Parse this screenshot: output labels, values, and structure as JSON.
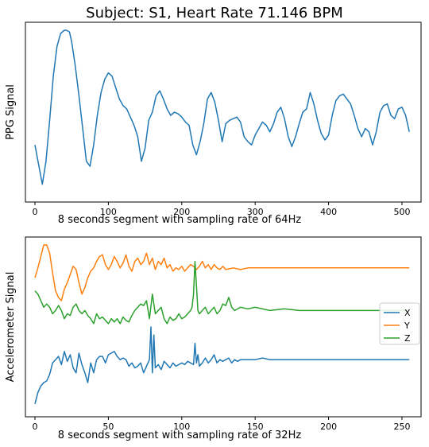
{
  "chart_data": [
    {
      "type": "line",
      "title": "Subject: S1, Heart Rate 71.146 BPM",
      "xlabel": "8 seconds segment with sampling rate of 64Hz",
      "ylabel": "PPG Signal",
      "xlim": [
        -13,
        526
      ],
      "ylim": [
        0.0,
        1.0
      ],
      "yticks_visible": false,
      "xticks": [
        "0",
        "100",
        "200",
        "300",
        "400",
        "500"
      ],
      "xtick_values": [
        0,
        100,
        200,
        300,
        400,
        500
      ],
      "grid": false,
      "series": [
        {
          "color": "#1f77b4",
          "x": [
            0,
            5,
            10,
            15,
            20,
            25,
            30,
            35,
            40,
            43,
            47,
            50,
            55,
            60,
            65,
            70,
            75,
            80,
            85,
            90,
            95,
            100,
            105,
            110,
            115,
            120,
            125,
            130,
            135,
            140,
            145,
            150,
            155,
            160,
            165,
            170,
            175,
            180,
            185,
            190,
            195,
            200,
            205,
            210,
            215,
            220,
            225,
            230,
            235,
            240,
            245,
            250,
            255,
            260,
            265,
            270,
            275,
            280,
            285,
            290,
            295,
            300,
            305,
            310,
            315,
            320,
            325,
            330,
            335,
            340,
            345,
            350,
            355,
            360,
            365,
            370,
            375,
            380,
            385,
            390,
            395,
            400,
            405,
            410,
            415,
            420,
            425,
            430,
            435,
            440,
            445,
            450,
            455,
            460,
            465,
            470,
            475,
            480,
            485,
            490,
            495,
            500,
            505,
            510
          ],
          "y": [
            0.3,
            0.18,
            0.06,
            0.2,
            0.45,
            0.72,
            0.9,
            0.98,
            1.0,
            1.0,
            0.99,
            0.93,
            0.78,
            0.6,
            0.4,
            0.2,
            0.17,
            0.3,
            0.48,
            0.62,
            0.7,
            0.74,
            0.72,
            0.65,
            0.58,
            0.54,
            0.52,
            0.47,
            0.42,
            0.35,
            0.2,
            0.28,
            0.45,
            0.5,
            0.6,
            0.63,
            0.58,
            0.52,
            0.48,
            0.5,
            0.49,
            0.47,
            0.44,
            0.42,
            0.3,
            0.24,
            0.32,
            0.43,
            0.58,
            0.62,
            0.56,
            0.45,
            0.32,
            0.43,
            0.45,
            0.46,
            0.47,
            0.44,
            0.35,
            0.32,
            0.3,
            0.36,
            0.4,
            0.44,
            0.42,
            0.38,
            0.43,
            0.5,
            0.53,
            0.46,
            0.35,
            0.29,
            0.35,
            0.43,
            0.5,
            0.52,
            0.62,
            0.55,
            0.45,
            0.37,
            0.33,
            0.36,
            0.48,
            0.57,
            0.6,
            0.61,
            0.58,
            0.55,
            0.48,
            0.4,
            0.35,
            0.4,
            0.38,
            0.3,
            0.38,
            0.5,
            0.54,
            0.55,
            0.48,
            0.46,
            0.52,
            0.53,
            0.48,
            0.38
          ]
        }
      ]
    },
    {
      "type": "line",
      "xlabel": "8 seconds segment with sampling rate of 32Hz",
      "ylabel": "Accelerometer Signal",
      "xlim": [
        -6.5,
        263
      ],
      "ylim": [
        0.0,
        1.0
      ],
      "yticks_visible": false,
      "xticks": [
        "0",
        "50",
        "100",
        "150",
        "200",
        "250"
      ],
      "xtick_values": [
        0,
        50,
        100,
        150,
        200,
        250
      ],
      "grid": false,
      "legend": {
        "position": "right",
        "entries": [
          "X",
          "Y",
          "Z"
        ]
      },
      "series": [
        {
          "name": "X",
          "color": "#1f77b4",
          "x": [
            0,
            2,
            4,
            6,
            8,
            10,
            12,
            14,
            16,
            18,
            20,
            22,
            24,
            26,
            28,
            30,
            32,
            34,
            36,
            38,
            40,
            42,
            44,
            46,
            48,
            50,
            52,
            54,
            56,
            58,
            60,
            62,
            64,
            66,
            68,
            70,
            72,
            74,
            76,
            78,
            79,
            80,
            81,
            82,
            84,
            86,
            88,
            90,
            92,
            94,
            96,
            98,
            100,
            102,
            104,
            106,
            108,
            109,
            110,
            111,
            112,
            114,
            116,
            118,
            120,
            122,
            124,
            126,
            128,
            130,
            132,
            134,
            136,
            138,
            140,
            145,
            150,
            155,
            160,
            165,
            170,
            180,
            190,
            200,
            210,
            220,
            230,
            240,
            250,
            255
          ],
          "y": [
            0.03,
            0.1,
            0.14,
            0.16,
            0.17,
            0.21,
            0.28,
            0.3,
            0.32,
            0.27,
            0.35,
            0.29,
            0.33,
            0.25,
            0.22,
            0.34,
            0.27,
            0.22,
            0.16,
            0.28,
            0.22,
            0.3,
            0.32,
            0.32,
            0.28,
            0.33,
            0.34,
            0.35,
            0.32,
            0.3,
            0.31,
            0.3,
            0.26,
            0.28,
            0.25,
            0.26,
            0.28,
            0.22,
            0.26,
            0.3,
            0.5,
            0.22,
            0.45,
            0.25,
            0.27,
            0.24,
            0.29,
            0.27,
            0.25,
            0.28,
            0.26,
            0.27,
            0.28,
            0.27,
            0.29,
            0.28,
            0.27,
            0.4,
            0.28,
            0.33,
            0.26,
            0.28,
            0.31,
            0.28,
            0.3,
            0.33,
            0.28,
            0.3,
            0.29,
            0.3,
            0.31,
            0.28,
            0.3,
            0.29,
            0.3,
            0.3,
            0.3,
            0.31,
            0.3,
            0.3,
            0.3,
            0.3,
            0.3,
            0.3,
            0.3,
            0.3,
            0.3,
            0.3,
            0.3,
            0.3
          ]
        },
        {
          "name": "Y",
          "color": "#ff7f0e",
          "x": [
            0,
            2,
            4,
            6,
            8,
            10,
            12,
            14,
            16,
            18,
            20,
            22,
            24,
            26,
            28,
            30,
            32,
            34,
            36,
            38,
            40,
            42,
            44,
            46,
            48,
            50,
            52,
            54,
            56,
            58,
            60,
            62,
            64,
            66,
            68,
            70,
            72,
            74,
            76,
            78,
            80,
            82,
            84,
            86,
            88,
            90,
            92,
            94,
            96,
            98,
            100,
            102,
            104,
            106,
            108,
            110,
            112,
            114,
            116,
            118,
            120,
            122,
            124,
            126,
            128,
            130,
            135,
            140,
            145,
            150,
            160,
            170,
            180,
            190,
            200,
            210,
            220,
            230,
            240,
            250,
            255
          ],
          "y": [
            0.8,
            0.86,
            0.93,
            1.0,
            1.0,
            0.95,
            0.83,
            0.72,
            0.68,
            0.66,
            0.73,
            0.77,
            0.82,
            0.87,
            0.85,
            0.77,
            0.7,
            0.74,
            0.8,
            0.84,
            0.86,
            0.9,
            0.93,
            0.94,
            0.88,
            0.85,
            0.88,
            0.93,
            0.9,
            0.86,
            0.89,
            0.94,
            0.87,
            0.84,
            0.9,
            0.92,
            0.88,
            0.9,
            0.95,
            0.88,
            0.92,
            0.85,
            0.9,
            0.88,
            0.92,
            0.86,
            0.88,
            0.84,
            0.86,
            0.85,
            0.87,
            0.84,
            0.86,
            0.88,
            0.87,
            0.85,
            0.87,
            0.9,
            0.86,
            0.88,
            0.85,
            0.88,
            0.86,
            0.85,
            0.87,
            0.85,
            0.86,
            0.85,
            0.86,
            0.86,
            0.86,
            0.86,
            0.86,
            0.86,
            0.86,
            0.86,
            0.86,
            0.86,
            0.86,
            0.86,
            0.86
          ]
        },
        {
          "name": "Z",
          "color": "#2ca02c",
          "x": [
            0,
            2,
            4,
            6,
            8,
            10,
            12,
            14,
            16,
            18,
            20,
            22,
            24,
            26,
            28,
            30,
            32,
            34,
            36,
            38,
            40,
            42,
            44,
            46,
            48,
            50,
            52,
            54,
            56,
            58,
            60,
            62,
            64,
            66,
            68,
            70,
            72,
            74,
            76,
            78,
            80,
            82,
            84,
            86,
            88,
            90,
            92,
            94,
            96,
            98,
            100,
            102,
            104,
            106,
            107,
            108,
            109,
            110,
            111,
            112,
            114,
            116,
            118,
            120,
            122,
            124,
            126,
            128,
            130,
            132,
            134,
            136,
            140,
            145,
            150,
            160,
            170,
            180,
            190,
            200,
            210,
            220,
            230,
            240,
            250,
            255
          ],
          "y": [
            0.72,
            0.7,
            0.66,
            0.62,
            0.64,
            0.62,
            0.58,
            0.6,
            0.63,
            0.6,
            0.55,
            0.58,
            0.57,
            0.62,
            0.64,
            0.6,
            0.58,
            0.6,
            0.57,
            0.55,
            0.52,
            0.58,
            0.55,
            0.56,
            0.54,
            0.52,
            0.55,
            0.53,
            0.55,
            0.52,
            0.56,
            0.54,
            0.53,
            0.57,
            0.6,
            0.62,
            0.64,
            0.63,
            0.66,
            0.55,
            0.7,
            0.58,
            0.6,
            0.62,
            0.55,
            0.52,
            0.56,
            0.54,
            0.55,
            0.58,
            0.55,
            0.56,
            0.58,
            0.6,
            0.62,
            0.7,
            0.9,
            0.75,
            0.6,
            0.58,
            0.6,
            0.62,
            0.58,
            0.6,
            0.62,
            0.58,
            0.6,
            0.64,
            0.63,
            0.68,
            0.62,
            0.6,
            0.62,
            0.61,
            0.62,
            0.6,
            0.61,
            0.6,
            0.6,
            0.6,
            0.6,
            0.6,
            0.6,
            0.6,
            0.6,
            0.6
          ]
        }
      ]
    }
  ]
}
